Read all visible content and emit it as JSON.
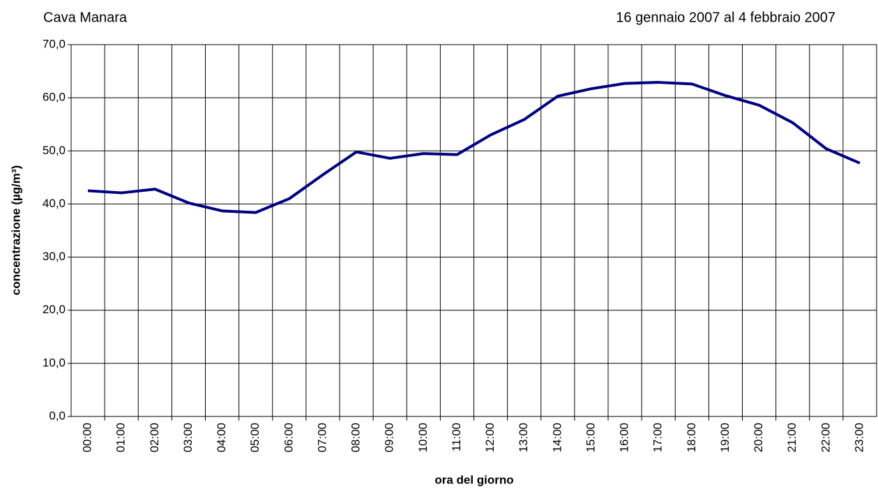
{
  "chart_data": {
    "type": "line",
    "title": "Cava Manara",
    "subtitle": "16 gennaio 2007 al 4 febbraio 2007",
    "x_label": "ora del giorno",
    "y_label": "concentrazione (µg/m³)",
    "categories": [
      "00:00",
      "01:00",
      "02:00",
      "03:00",
      "04:00",
      "05:00",
      "06:00",
      "07:00",
      "08:00",
      "09:00",
      "10:00",
      "11:00",
      "12:00",
      "13:00",
      "14:00",
      "15:00",
      "16:00",
      "17:00",
      "18:00",
      "19:00",
      "20:00",
      "21:00",
      "22:00",
      "23:00"
    ],
    "series": [
      {
        "name": "concentrazione",
        "color": "#000080",
        "values": [
          42.5,
          42.1,
          42.8,
          40.2,
          38.7,
          38.4,
          41.0,
          45.5,
          49.8,
          48.6,
          49.5,
          49.3,
          53.0,
          55.9,
          60.3,
          61.7,
          62.7,
          62.9,
          62.6,
          60.4,
          58.6,
          55.3,
          50.4,
          47.7
        ]
      }
    ],
    "ylim": [
      0,
      70
    ],
    "yticks": [
      {
        "value": 0,
        "label": "0,0"
      },
      {
        "value": 10,
        "label": "10,0"
      },
      {
        "value": 20,
        "label": "20,0"
      },
      {
        "value": 30,
        "label": "30,0"
      },
      {
        "value": 40,
        "label": "40,0"
      },
      {
        "value": 50,
        "label": "50,0"
      },
      {
        "value": 60,
        "label": "60,0"
      },
      {
        "value": 70,
        "label": "70,0"
      }
    ],
    "grid": true
  }
}
